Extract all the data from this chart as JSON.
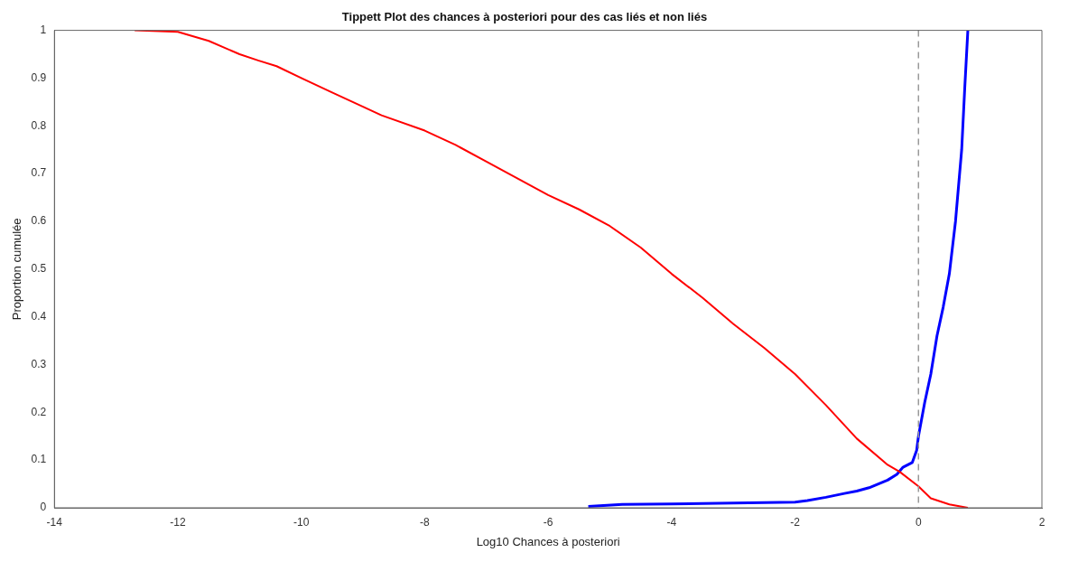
{
  "chart_data": {
    "type": "line",
    "title": "Tippett Plot des chances à posteriori pour des cas liés et non liés",
    "xlabel": "Log10 Chances à posteriori",
    "ylabel": "Proportion cumulée",
    "xlim": [
      -14,
      2
    ],
    "xticks": [
      -14,
      -12,
      -10,
      -8,
      -6,
      -4,
      -2,
      0,
      2
    ],
    "ylim": [
      0,
      1
    ],
    "yticks": [
      0,
      0.1,
      0.2,
      0.3,
      0.4,
      0.5,
      0.6,
      0.7,
      0.8,
      0.9,
      1
    ],
    "grid": false,
    "legend": false,
    "marker": "none",
    "line_style": "solid",
    "ref_lines": [
      {
        "axis": "x",
        "value": 0,
        "color": "#999999",
        "line_style": "dashed"
      }
    ],
    "series": [
      {
        "color": "#ff0000",
        "x": [
          -12.7,
          -12,
          -11.5,
          -11,
          -10.7,
          -10.4,
          -10,
          -9.5,
          -9,
          -8.7,
          -8,
          -7.5,
          -7,
          -6.5,
          -6,
          -5.5,
          -5,
          -4.5,
          -4,
          -3.5,
          -3,
          -2.5,
          -2,
          -1.5,
          -1,
          -0.5,
          -0.3,
          0,
          0.2,
          0.5,
          0.8
        ],
        "values": [
          1,
          0.997,
          0.978,
          0.95,
          0.937,
          0.925,
          0.9,
          0.87,
          0.84,
          0.822,
          0.79,
          0.76,
          0.725,
          0.69,
          0.655,
          0.625,
          0.59,
          0.545,
          0.49,
          0.44,
          0.385,
          0.335,
          0.28,
          0.215,
          0.145,
          0.09,
          0.075,
          0.045,
          0.02,
          0.007,
          0
        ]
      },
      {
        "color": "#0000ff",
        "x": [
          -5.35,
          -4.8,
          -4,
          -3,
          -2,
          -1.8,
          -1.5,
          -1.2,
          -1,
          -0.8,
          -0.5,
          -0.35,
          -0.25,
          -0.1,
          -0.03,
          0,
          0.1,
          0.2,
          0.3,
          0.4,
          0.5,
          0.6,
          0.7,
          0.75,
          0.8
        ],
        "values": [
          0.003,
          0.007,
          0.008,
          0.01,
          0.012,
          0.015,
          0.022,
          0.03,
          0.035,
          0.042,
          0.058,
          0.07,
          0.085,
          0.095,
          0.12,
          0.15,
          0.22,
          0.28,
          0.36,
          0.42,
          0.49,
          0.6,
          0.75,
          0.88,
          1
        ]
      }
    ]
  }
}
